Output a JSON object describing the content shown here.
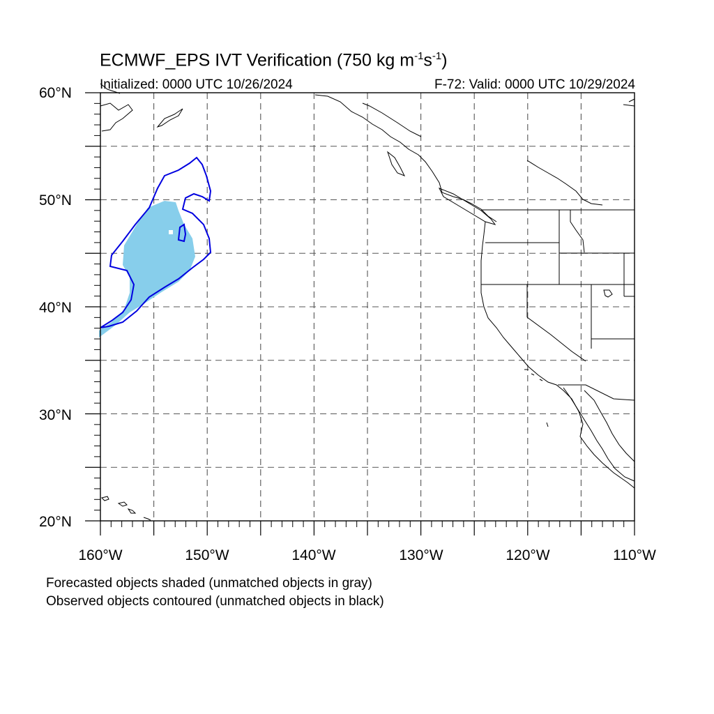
{
  "title": {
    "main_prefix": "ECMWF_EPS IVT Verification (750 kg m",
    "sup1": "-1",
    "middle": "s",
    "sup2": "-1",
    "suffix": ")"
  },
  "subtitle": {
    "initialized": "Initialized: 0000 UTC 10/26/2024",
    "valid": "F-72: Valid: 0000 UTC 10/29/2024"
  },
  "axes": {
    "lat_labels": [
      "60°N",
      "50°N",
      "40°N",
      "30°N",
      "20°N"
    ],
    "lon_labels": [
      "160°W",
      "150°W",
      "140°W",
      "130°W",
      "120°W",
      "110°W"
    ],
    "lat_range": [
      20,
      60
    ],
    "lon_range": [
      -160,
      -110
    ],
    "grid": "dashed every 5 degrees"
  },
  "captions": {
    "forecast": "Forecasted objects shaded (unmatched objects in gray)",
    "observed": "Observed objects contoured (unmatched objects in black)"
  },
  "colors": {
    "forecast_fill": "#87ceeb",
    "observed_contour": "#0000e0",
    "coastline": "#000000",
    "grid": "#555555"
  }
}
